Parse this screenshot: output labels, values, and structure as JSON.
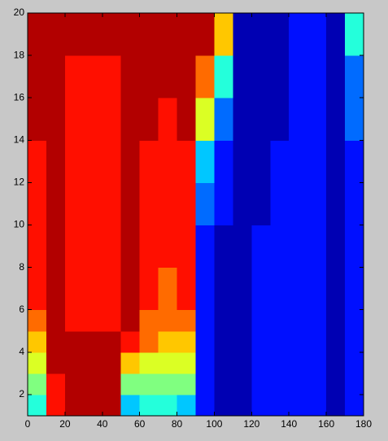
{
  "chart_data": {
    "type": "contour",
    "colormap": "jet",
    "x_edges": [
      0,
      10,
      20,
      30,
      40,
      50,
      60,
      70,
      80,
      90,
      100,
      110,
      120,
      130,
      140,
      150,
      160,
      170,
      180
    ],
    "y_edges": [
      1,
      2,
      3,
      4,
      5,
      6,
      8,
      10,
      12,
      14,
      16,
      18,
      20
    ],
    "z": [
      [
        4,
        9,
        10,
        10,
        10,
        3,
        4,
        4,
        3,
        1,
        0,
        0,
        1,
        1,
        1,
        1,
        0,
        1
      ],
      [
        5,
        9,
        10,
        10,
        10,
        5,
        5,
        5,
        5,
        1,
        0,
        0,
        1,
        1,
        1,
        1,
        0,
        1
      ],
      [
        6,
        10,
        10,
        10,
        10,
        7,
        6,
        6,
        6,
        1,
        0,
        0,
        1,
        1,
        1,
        1,
        0,
        1
      ],
      [
        7,
        10,
        10,
        10,
        10,
        9,
        8,
        7,
        7,
        1,
        0,
        0,
        1,
        1,
        1,
        1,
        0,
        1
      ],
      [
        8,
        10,
        9,
        9,
        9,
        10,
        8,
        8,
        8,
        1,
        0,
        0,
        1,
        1,
        1,
        1,
        0,
        1
      ],
      [
        9,
        10,
        9,
        9,
        9,
        10,
        9,
        8,
        9,
        1,
        0,
        0,
        1,
        1,
        1,
        1,
        0,
        1
      ],
      [
        9,
        10,
        9,
        9,
        9,
        10,
        9,
        9,
        9,
        1,
        0,
        0,
        1,
        1,
        1,
        1,
        0,
        1
      ],
      [
        9,
        10,
        9,
        9,
        9,
        10,
        9,
        9,
        9,
        2,
        1,
        0,
        0,
        1,
        1,
        1,
        0,
        1
      ],
      [
        9,
        10,
        9,
        9,
        9,
        10,
        9,
        9,
        9,
        3,
        1,
        0,
        0,
        1,
        1,
        1,
        0,
        1
      ],
      [
        10,
        10,
        9,
        9,
        9,
        10,
        10,
        9,
        10,
        6,
        2,
        0,
        0,
        0,
        1,
        1,
        0,
        2
      ],
      [
        10,
        10,
        9,
        9,
        9,
        10,
        10,
        10,
        10,
        8,
        4,
        0,
        0,
        0,
        1,
        1,
        0,
        2
      ],
      [
        10,
        10,
        10,
        10,
        10,
        10,
        10,
        10,
        10,
        10,
        7,
        0,
        0,
        0,
        1,
        1,
        0,
        4
      ]
    ],
    "zlim": [
      0,
      10
    ],
    "xlim": [
      0,
      180
    ],
    "ylim": [
      1,
      20
    ],
    "xticks": [
      0,
      20,
      40,
      60,
      80,
      100,
      120,
      140,
      160,
      180
    ],
    "yticks": [
      2,
      4,
      6,
      8,
      10,
      12,
      14,
      16,
      18,
      20
    ]
  }
}
